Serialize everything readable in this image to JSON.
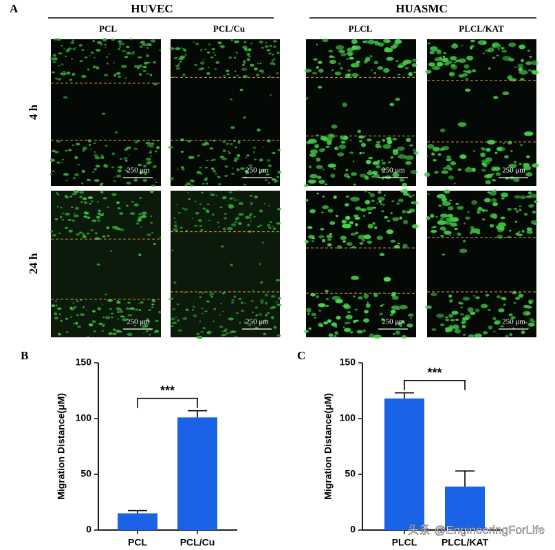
{
  "panel_a": {
    "label": "A",
    "groups": [
      {
        "title": "HUVEC",
        "columns": [
          "PCL",
          "PCL/Cu"
        ]
      },
      {
        "title": "HUASMC",
        "columns": [
          "PLCL",
          "PLCL/KAT"
        ]
      }
    ],
    "rows": [
      "4 h",
      "24 h"
    ],
    "scale_bar": "250 μm"
  },
  "chart_data": [
    {
      "type": "bar",
      "label": "B",
      "ylabel": "Migration Distance(μM)",
      "categories": [
        "PCL",
        "PCL/Cu"
      ],
      "values": [
        15,
        101
      ],
      "errors": [
        2.5,
        6
      ],
      "color": "#1a62e6",
      "ylim": [
        0,
        150
      ],
      "yticks": [
        0,
        50,
        100,
        150
      ],
      "significance": "***"
    },
    {
      "type": "bar",
      "label": "C",
      "ylabel": "Migration Distance(μM)",
      "categories": [
        "PLCL",
        "PLCL/KAT"
      ],
      "values": [
        118,
        39
      ],
      "errors": [
        5,
        14
      ],
      "color": "#1a62e6",
      "ylim": [
        0,
        150
      ],
      "yticks": [
        0,
        50,
        100,
        150
      ],
      "significance": "***"
    }
  ],
  "watermark": "头条 @EngineeringForLife"
}
